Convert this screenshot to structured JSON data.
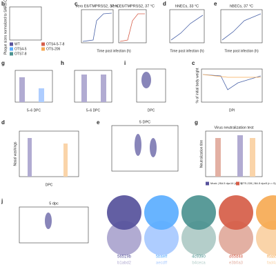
{
  "panels": [
    {
      "letter": "b",
      "ylabel": "Plaque sizes normalized to SARS-CoV-2"
    },
    {
      "letter": "c",
      "title": "Vero E6/TMPRSS2, 37 °C",
      "title2": "Vero E6/TMPRSS2, 37 °C",
      "xlabel": "Time post infection (h)"
    },
    {
      "letter": "d",
      "title": "hNECs, 33 °C",
      "xlabel": "Time post infection (h)"
    },
    {
      "letter": "e",
      "title": "hBECs, 37 °C",
      "xlabel": "Time post infection (h)"
    },
    {
      "letter": "g",
      "xlabel": "5–6 DPC"
    },
    {
      "letter": "h",
      "xlabel": "5–6 DPC"
    },
    {
      "letter": "i",
      "xlabel": "DPC"
    },
    {
      "letter": "c",
      "ylabel": "% of initial body weight",
      "xlabel": "DPI"
    },
    {
      "letter": "d",
      "ylabel": "Nasal washings",
      "xlabel": "DPC"
    },
    {
      "letter": "e",
      "title": "5 DPC"
    },
    {
      "letter": "g",
      "title": "Virus neutralization test",
      "ylabel": "Neutralization titre"
    },
    {
      "letter": "j",
      "title": "5 dpc"
    }
  ],
  "legend_b": [
    "WT",
    "OTS4-5",
    "OTS7-8",
    "OTS4-5-7-8",
    "OTS-206"
  ],
  "legend_g": [
    "Mock | BA.5 dpc14 (n = 3)",
    "OTS-228 | BA.5 dpc5 (n = 5)"
  ],
  "palette": [
    {
      "dark": "56519b",
      "light": "b1abd2"
    },
    {
      "dark": "5baeff",
      "light": "aecdff"
    },
    {
      "dark": "4c9390",
      "light": "b4ceca"
    },
    {
      "dark": "d65d48",
      "light": "e3b0a3"
    },
    {
      "dark": "f6aa54",
      "light": "fad4a9"
    }
  ]
}
